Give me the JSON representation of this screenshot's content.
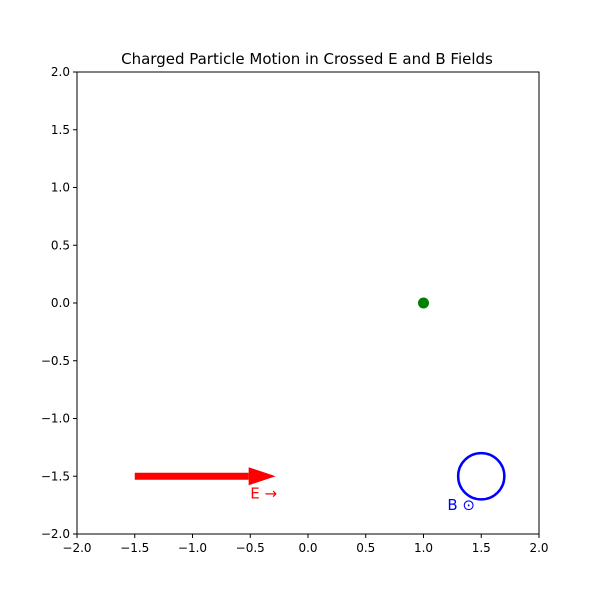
{
  "chart_data": {
    "type": "scatter",
    "title": "Charged Particle Motion in Crossed E and B Fields",
    "xlabel": "",
    "ylabel": "",
    "xlim": [
      -2.0,
      2.0
    ],
    "ylim": [
      -2.0,
      2.0
    ],
    "x_ticks": [
      -2.0,
      -1.5,
      -1.0,
      -0.5,
      0.0,
      0.5,
      1.0,
      1.5,
      2.0
    ],
    "x_tick_labels": [
      "−2.0",
      "−1.5",
      "−1.0",
      "−0.5",
      "0.0",
      "0.5",
      "1.0",
      "1.5",
      "2.0"
    ],
    "y_ticks": [
      2.0,
      1.5,
      1.0,
      0.5,
      0.0,
      -0.5,
      -1.0,
      -1.5,
      -2.0
    ],
    "y_tick_labels": [
      "2.0",
      "1.5",
      "1.0",
      "0.5",
      "0.0",
      "−0.5",
      "−1.0",
      "−1.5",
      "−2.0"
    ],
    "grid": false,
    "particle": {
      "x": 1.0,
      "y": 0.0,
      "color": "#008000"
    },
    "e_field": {
      "x_start": -1.5,
      "y_start": -1.5,
      "x_end": -0.28,
      "y_end": -1.5,
      "label": "E →",
      "label_x": -0.5,
      "label_y": -1.65,
      "color": "#ff0000"
    },
    "b_field": {
      "cx": 1.5,
      "cy": -1.5,
      "radius": 0.2,
      "label": "B ⊙",
      "label_x": 1.25,
      "label_y": -1.75,
      "color": "#0000ff"
    }
  }
}
